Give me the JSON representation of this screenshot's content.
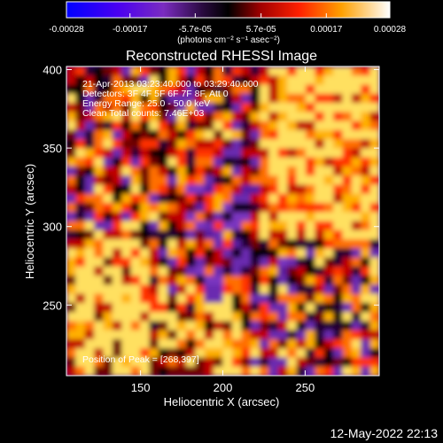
{
  "chart_data": {
    "type": "heatmap",
    "title": "Reconstructed RHESSI Image",
    "xlabel": "Heliocentric X (arcsec)",
    "ylabel": "Heliocentric Y (arcsec)",
    "xlim": [
      105,
      295
    ],
    "ylim": [
      205,
      402
    ],
    "x_ticks": [
      150,
      200,
      250
    ],
    "y_ticks": [
      250,
      300,
      350,
      400
    ],
    "colorbar": {
      "ticks": [
        "-0.00028",
        "-0.00017",
        "-5.7e-05",
        "5.7e-05",
        "0.00017",
        "0.00028"
      ],
      "tick_values": [
        -0.00028,
        -0.00017,
        -5.7e-05,
        5.7e-05,
        0.00017,
        0.00028
      ],
      "range": [
        -0.00028,
        0.00028
      ],
      "units": "(photons cm⁻² s⁻¹ asec⁻²)"
    },
    "annotations": [
      "21-Apr-2013 03:23:40.000 to 03:29:40.000",
      "Detectors: 3F 4F 5F 6F 7F 8F, Att 0",
      "Energy Range: 25.0 - 50.0 keV",
      "Clean     Total counts: 7.46E+03"
    ],
    "peak_label": "Position of Peak = [268,397]",
    "peak_position": [
      268,
      397
    ]
  },
  "footer": {
    "timestamp": "12-May-2022 22:13"
  }
}
